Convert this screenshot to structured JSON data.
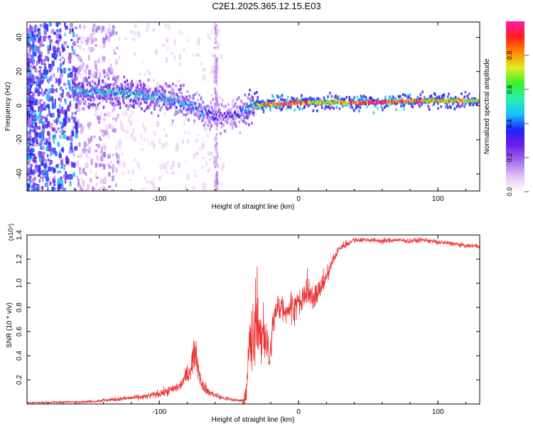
{
  "title": "C2E1.2025.365.12.15.E03",
  "colors": {
    "signal_line": "#ee3333",
    "axis": "#000000",
    "colorbar_stops": [
      "#ffffff",
      "#e6c2f5",
      "#9f6bf0",
      "#6a1fe6",
      "#1f22ff",
      "#16c3ff",
      "#2bf0ad",
      "#3cf02e",
      "#e4ea20",
      "#ff8a00",
      "#ff1d1d",
      "#ff1aa8"
    ]
  },
  "chart_data": [
    {
      "type": "heatmap",
      "title": "C2E1.2025.365.12.15.E03",
      "xlabel": "Height of straight line (km)",
      "ylabel": "Frequency (Hz)",
      "xlim": [
        -195,
        130
      ],
      "ylim": [
        -50,
        49
      ],
      "xticks": [
        -100,
        0,
        100
      ],
      "xtick_labels": [
        "-100",
        "0",
        "100"
      ],
      "yticks": [
        -40,
        -20,
        0,
        20,
        40
      ],
      "ytick_labels": [
        "-40",
        "-20",
        "0",
        "20",
        "40"
      ],
      "colorbar": {
        "label": "Normalized spectral amplitude",
        "range": [
          0,
          1
        ],
        "ticks": [
          0.0,
          0.2,
          0.4,
          0.6,
          0.8
        ],
        "tick_labels": [
          "0.0",
          "0.2",
          "0.4",
          "0.6",
          "0.8"
        ]
      },
      "ridge": {
        "description_x_km": [
          -163,
          -140,
          -120,
          -100,
          -85,
          -75,
          -65,
          -58,
          -50,
          -42,
          -35,
          -30,
          -20,
          -10,
          0,
          10,
          20,
          40,
          60,
          80,
          100,
          130
        ],
        "frequency_hz": [
          9,
          8,
          7,
          5,
          2,
          -1,
          -5,
          -7,
          -6,
          -4,
          -1,
          0,
          1,
          1,
          2,
          2,
          2,
          2,
          2,
          3,
          3,
          3
        ],
        "amplitude": [
          0.45,
          0.5,
          0.5,
          0.45,
          0.42,
          0.4,
          0.38,
          0.3,
          0.3,
          0.35,
          0.5,
          0.7,
          0.85,
          0.9,
          0.85,
          0.75,
          0.7,
          0.9,
          0.95,
          0.85,
          0.75,
          0.65
        ]
      }
    },
    {
      "type": "line",
      "xlabel": "Height of straight line (km)",
      "ylabel": "SNR (10 * v/v)",
      "yscale_label": "(x10⁴)",
      "xlim": [
        -195,
        130
      ],
      "ylim": [
        0,
        1.4
      ],
      "xticks": [
        -100,
        0,
        100
      ],
      "xtick_labels": [
        "-100",
        "0",
        "100"
      ],
      "yticks": [
        0.2,
        0.4,
        0.6,
        0.8,
        1.0,
        1.2,
        1.4
      ],
      "ytick_labels": [
        "0.2",
        "0.4",
        "0.6",
        "0.8",
        "1.0",
        "1.2",
        "1.4"
      ],
      "series": [
        {
          "name": "SNR",
          "x": [
            -195,
            -170,
            -150,
            -130,
            -110,
            -95,
            -85,
            -78,
            -74,
            -72,
            -70,
            -65,
            -55,
            -45,
            -40,
            -37,
            -35,
            -33,
            -30,
            -27,
            -24,
            -21,
            -18,
            -15,
            -10,
            -5,
            0,
            5,
            10,
            15,
            20,
            25,
            30,
            40,
            50,
            60,
            70,
            80,
            90,
            100,
            110,
            120,
            130
          ],
          "y": [
            0.01,
            0.015,
            0.02,
            0.04,
            0.06,
            0.1,
            0.15,
            0.28,
            0.45,
            0.3,
            0.18,
            0.1,
            0.05,
            0.03,
            0.03,
            0.1,
            0.6,
            0.4,
            0.75,
            0.5,
            0.55,
            0.35,
            0.7,
            0.8,
            0.78,
            0.8,
            0.82,
            0.9,
            0.88,
            0.95,
            1.05,
            1.2,
            1.3,
            1.36,
            1.36,
            1.35,
            1.36,
            1.35,
            1.36,
            1.34,
            1.33,
            1.31,
            1.31
          ],
          "noise": [
            0.005,
            0.006,
            0.008,
            0.015,
            0.02,
            0.03,
            0.04,
            0.08,
            0.1,
            0.08,
            0.05,
            0.03,
            0.02,
            0.01,
            0.01,
            0.15,
            0.25,
            0.2,
            0.2,
            0.18,
            0.15,
            0.12,
            0.1,
            0.1,
            0.08,
            0.1,
            0.1,
            0.1,
            0.1,
            0.08,
            0.06,
            0.04,
            0.03,
            0.02,
            0.015,
            0.02,
            0.015,
            0.02,
            0.015,
            0.02,
            0.015,
            0.015,
            0.015
          ]
        }
      ]
    }
  ]
}
